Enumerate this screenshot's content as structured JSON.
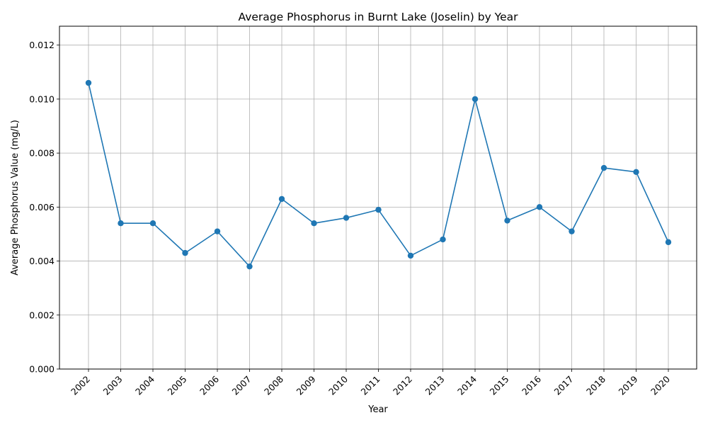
{
  "chart_data": {
    "type": "line",
    "title": "Average Phosphorus in Burnt Lake (Joselin) by Year",
    "xlabel": "Year",
    "ylabel": "Average Phosphorus Value (mg/L)",
    "ylim": [
      0,
      0.0127
    ],
    "yticks": [
      "0.000",
      "0.002",
      "0.004",
      "0.006",
      "0.008",
      "0.010",
      "0.012"
    ],
    "categories": [
      "2002",
      "2003",
      "2004",
      "2005",
      "2006",
      "2007",
      "2008",
      "2009",
      "2010",
      "2011",
      "2012",
      "2013",
      "2014",
      "2015",
      "2016",
      "2017",
      "2018",
      "2019",
      "2020"
    ],
    "values": [
      0.0106,
      0.0054,
      0.0054,
      0.0043,
      0.0051,
      0.0038,
      0.0063,
      0.0054,
      0.0056,
      0.0059,
      0.0042,
      0.0048,
      0.01,
      0.0055,
      0.006,
      0.0051,
      0.00745,
      0.0073,
      0.0047
    ],
    "grid": true,
    "line_color": "#1f77b4",
    "grid_color": "#b0b0b0"
  }
}
